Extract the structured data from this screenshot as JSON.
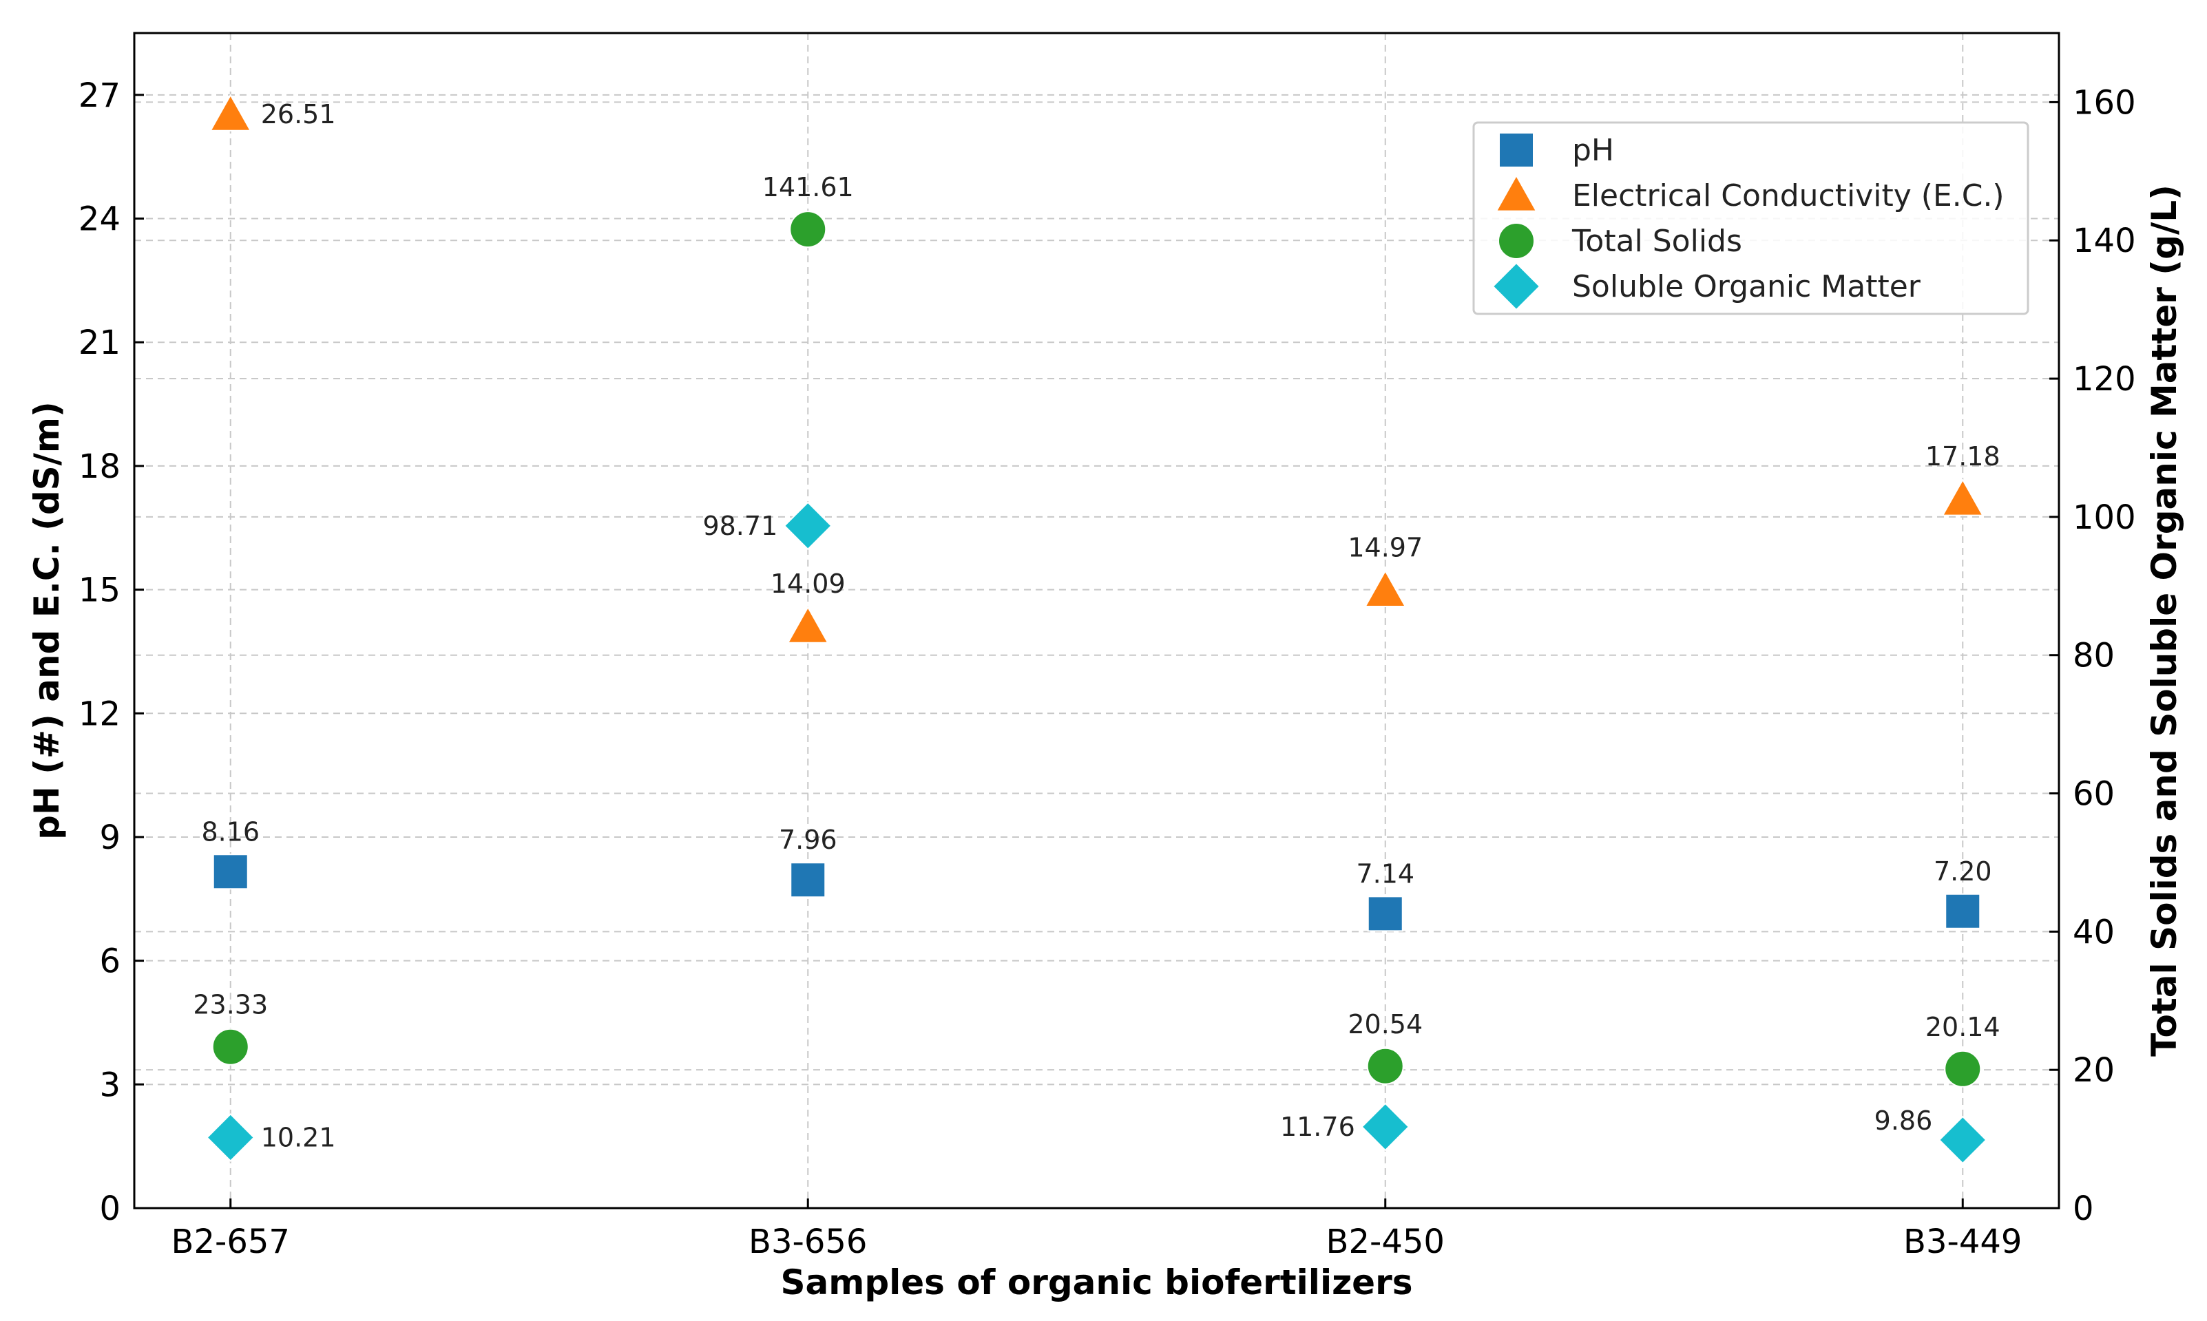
{
  "chart_data": {
    "type": "scatter",
    "categories": [
      "B2-657",
      "B3-656",
      "B2-450",
      "B3-449"
    ],
    "xlabel": "Samples of organic biofertilizers",
    "ylabel_left": "pH (#) and E.C. (dS/m)",
    "ylabel_right": "Total Solids and Soluble Organic Matter (g/L)",
    "ylim_left": [
      0,
      28.5
    ],
    "ylim_right": [
      0,
      170
    ],
    "yticks_left": [
      0,
      3,
      6,
      9,
      12,
      15,
      18,
      21,
      24,
      27
    ],
    "yticks_right": [
      0,
      20,
      40,
      60,
      80,
      100,
      120,
      140,
      160
    ],
    "grid": true,
    "legend_position": "top-right",
    "series": [
      {
        "name": "pH",
        "axis": "left",
        "marker": "square",
        "color": "#1f77b4",
        "values": [
          8.16,
          7.96,
          7.14,
          7.2
        ],
        "labels": [
          "8.16",
          "7.96",
          "7.14",
          "7.20"
        ]
      },
      {
        "name": "Electrical Conductivity (E.C.)",
        "axis": "left",
        "marker": "triangle",
        "color": "#ff7f0e",
        "values": [
          26.51,
          14.09,
          14.97,
          17.18
        ],
        "labels": [
          "26.51",
          "14.09",
          "14.97",
          "17.18"
        ]
      },
      {
        "name": "Total Solids",
        "axis": "right",
        "marker": "circle",
        "color": "#2ca02c",
        "values": [
          23.33,
          141.61,
          20.54,
          20.14
        ],
        "labels": [
          "23.33",
          "141.61",
          "20.54",
          "20.14"
        ]
      },
      {
        "name": "Soluble Organic Matter",
        "axis": "right",
        "marker": "diamond",
        "color": "#17becf",
        "values": [
          10.21,
          98.71,
          11.76,
          9.86
        ],
        "labels": [
          "10.21",
          "98.71",
          "11.76",
          "9.86"
        ]
      }
    ]
  }
}
